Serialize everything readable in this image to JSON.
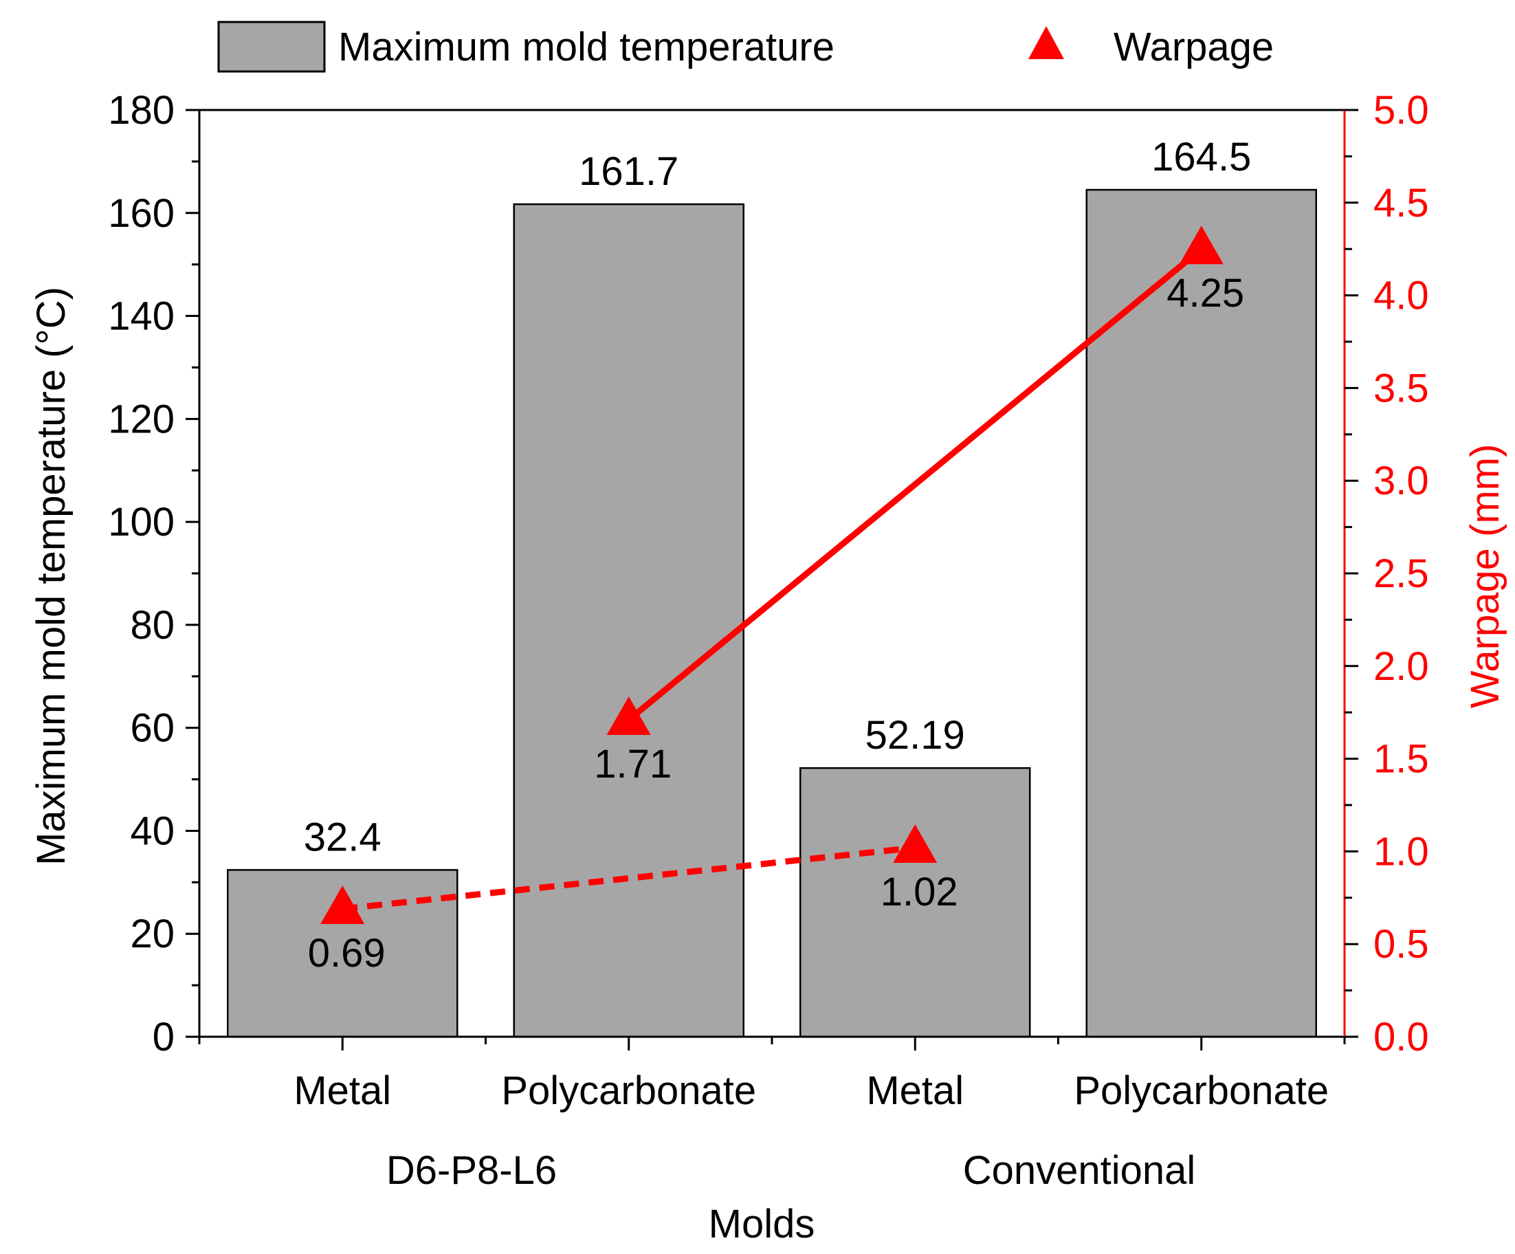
{
  "chart_data": {
    "type": "bar",
    "categories": [
      "Metal",
      "Polycarbonate",
      "Metal",
      "Polycarbonate"
    ],
    "groups": [
      {
        "label": "D6-P8-L6",
        "categories": [
          0,
          1
        ]
      },
      {
        "label": "Conventional",
        "categories": [
          2,
          3
        ]
      }
    ],
    "xlabel": "Molds",
    "ylabel": "Maximum mold temperature (°C)",
    "y2label": "Warpage (mm)",
    "ylim": [
      0,
      180
    ],
    "y2lim": [
      0,
      5
    ],
    "yticks": [
      "0",
      "20",
      "40",
      "60",
      "80",
      "100",
      "120",
      "140",
      "160",
      "180"
    ],
    "y2ticks": [
      "0.0",
      "0.5",
      "1.0",
      "1.5",
      "2.0",
      "2.5",
      "3.0",
      "3.5",
      "4.0",
      "4.5",
      "5.0"
    ],
    "grid": false,
    "legend_position": "top",
    "series": [
      {
        "name": "Maximum mold temperature",
        "kind": "bar",
        "axis": "left",
        "values": [
          32.4,
          161.7,
          52.19,
          164.5
        ],
        "labels": [
          "32.4",
          "161.7",
          "52.19",
          "164.5"
        ],
        "color": "#a6a6a6"
      },
      {
        "name": "Warpage",
        "kind": "scatter",
        "axis": "right",
        "values": [
          0.69,
          1.71,
          1.02,
          4.25
        ],
        "labels": [
          "0.69",
          "1.71",
          "1.02",
          "4.25"
        ],
        "color": "#ff0000",
        "connectors": [
          {
            "from": 0,
            "to": 2,
            "style": "dashed"
          },
          {
            "from": 1,
            "to": 3,
            "style": "solid"
          }
        ]
      }
    ]
  }
}
